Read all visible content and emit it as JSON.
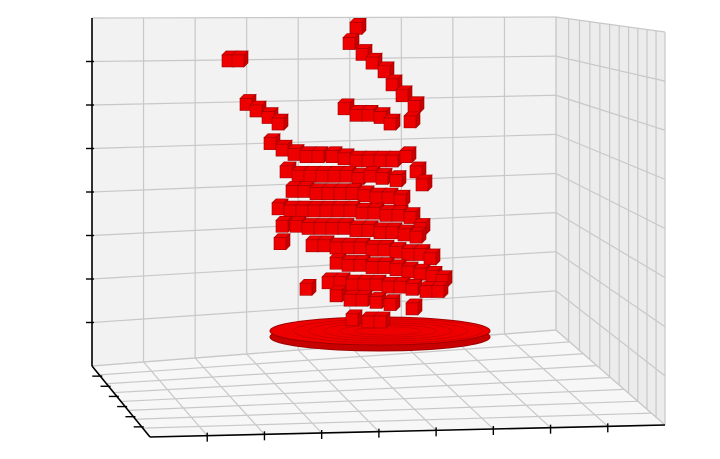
{
  "chart_data": {
    "type": "voxel-3d",
    "title": "",
    "xlabel": "",
    "ylabel": "",
    "zlabel": "",
    "grid": true,
    "tick_labels_shown": false,
    "colors": {
      "background": "#ffffff",
      "pane_back": "#f2f2f2",
      "pane_side": "#ececec",
      "pane_floor": "#f7f7f7",
      "grid": "#c8c8c8",
      "axis": "#000000",
      "voxel_face": "#ee0000",
      "voxel_edge": "#a00000",
      "voxel_shade": "#c80000"
    },
    "base_disk": {
      "cx": 380,
      "cz": 0.3,
      "rx": 110,
      "ry": 14
    },
    "voxels": [
      [
        222,
        7.15
      ],
      [
        232,
        7.15
      ],
      [
        240,
        6.15
      ],
      [
        250,
        6.0
      ],
      [
        262,
        5.85
      ],
      [
        272,
        5.7
      ],
      [
        350,
        7.9
      ],
      [
        343,
        7.55
      ],
      [
        356,
        7.3
      ],
      [
        366,
        7.1
      ],
      [
        378,
        6.9
      ],
      [
        386,
        6.6
      ],
      [
        396,
        6.35
      ],
      [
        408,
        6.1
      ],
      [
        404,
        5.75
      ],
      [
        338,
        6.05
      ],
      [
        350,
        5.9
      ],
      [
        362,
        5.9
      ],
      [
        374,
        5.85
      ],
      [
        384,
        5.7
      ],
      [
        264,
        5.25
      ],
      [
        276,
        5.1
      ],
      [
        288,
        5.0
      ],
      [
        300,
        4.95
      ],
      [
        312,
        4.95
      ],
      [
        326,
        4.95
      ],
      [
        338,
        4.9
      ],
      [
        350,
        4.85
      ],
      [
        362,
        4.85
      ],
      [
        374,
        4.85
      ],
      [
        386,
        4.85
      ],
      [
        400,
        4.95
      ],
      [
        410,
        4.6
      ],
      [
        416,
        4.3
      ],
      [
        280,
        4.6
      ],
      [
        292,
        4.5
      ],
      [
        304,
        4.5
      ],
      [
        316,
        4.5
      ],
      [
        328,
        4.5
      ],
      [
        340,
        4.5
      ],
      [
        352,
        4.45
      ],
      [
        364,
        4.5
      ],
      [
        376,
        4.45
      ],
      [
        390,
        4.4
      ],
      [
        286,
        4.15
      ],
      [
        298,
        4.15
      ],
      [
        310,
        4.1
      ],
      [
        322,
        4.1
      ],
      [
        334,
        4.1
      ],
      [
        346,
        4.1
      ],
      [
        358,
        4.05
      ],
      [
        370,
        4.0
      ],
      [
        382,
        4.0
      ],
      [
        394,
        3.95
      ],
      [
        272,
        3.75
      ],
      [
        284,
        3.7
      ],
      [
        296,
        3.7
      ],
      [
        308,
        3.7
      ],
      [
        320,
        3.7
      ],
      [
        332,
        3.7
      ],
      [
        344,
        3.7
      ],
      [
        356,
        3.65
      ],
      [
        368,
        3.65
      ],
      [
        380,
        3.6
      ],
      [
        392,
        3.6
      ],
      [
        404,
        3.55
      ],
      [
        414,
        3.3
      ],
      [
        276,
        3.35
      ],
      [
        290,
        3.35
      ],
      [
        302,
        3.3
      ],
      [
        314,
        3.3
      ],
      [
        326,
        3.3
      ],
      [
        338,
        3.3
      ],
      [
        350,
        3.25
      ],
      [
        362,
        3.25
      ],
      [
        374,
        3.2
      ],
      [
        386,
        3.2
      ],
      [
        398,
        3.15
      ],
      [
        410,
        3.1
      ],
      [
        274,
        2.95
      ],
      [
        306,
        2.9
      ],
      [
        318,
        2.9
      ],
      [
        330,
        2.85
      ],
      [
        342,
        2.85
      ],
      [
        354,
        2.85
      ],
      [
        366,
        2.8
      ],
      [
        378,
        2.8
      ],
      [
        390,
        2.75
      ],
      [
        402,
        2.7
      ],
      [
        414,
        2.7
      ],
      [
        424,
        2.6
      ],
      [
        330,
        2.5
      ],
      [
        342,
        2.45
      ],
      [
        354,
        2.45
      ],
      [
        366,
        2.4
      ],
      [
        378,
        2.4
      ],
      [
        390,
        2.35
      ],
      [
        402,
        2.3
      ],
      [
        414,
        2.25
      ],
      [
        426,
        2.2
      ],
      [
        436,
        2.1
      ],
      [
        322,
        2.05
      ],
      [
        334,
        2.05
      ],
      [
        346,
        2.0
      ],
      [
        358,
        2.0
      ],
      [
        370,
        2.0
      ],
      [
        382,
        1.95
      ],
      [
        394,
        1.95
      ],
      [
        406,
        1.9
      ],
      [
        420,
        1.85
      ],
      [
        432,
        1.85
      ],
      [
        300,
        1.9
      ],
      [
        330,
        1.75
      ],
      [
        344,
        1.65
      ],
      [
        356,
        1.65
      ],
      [
        370,
        1.6
      ],
      [
        384,
        1.55
      ],
      [
        406,
        1.45
      ],
      [
        346,
        1.2
      ],
      [
        362,
        1.15
      ],
      [
        374,
        1.15
      ]
    ]
  }
}
